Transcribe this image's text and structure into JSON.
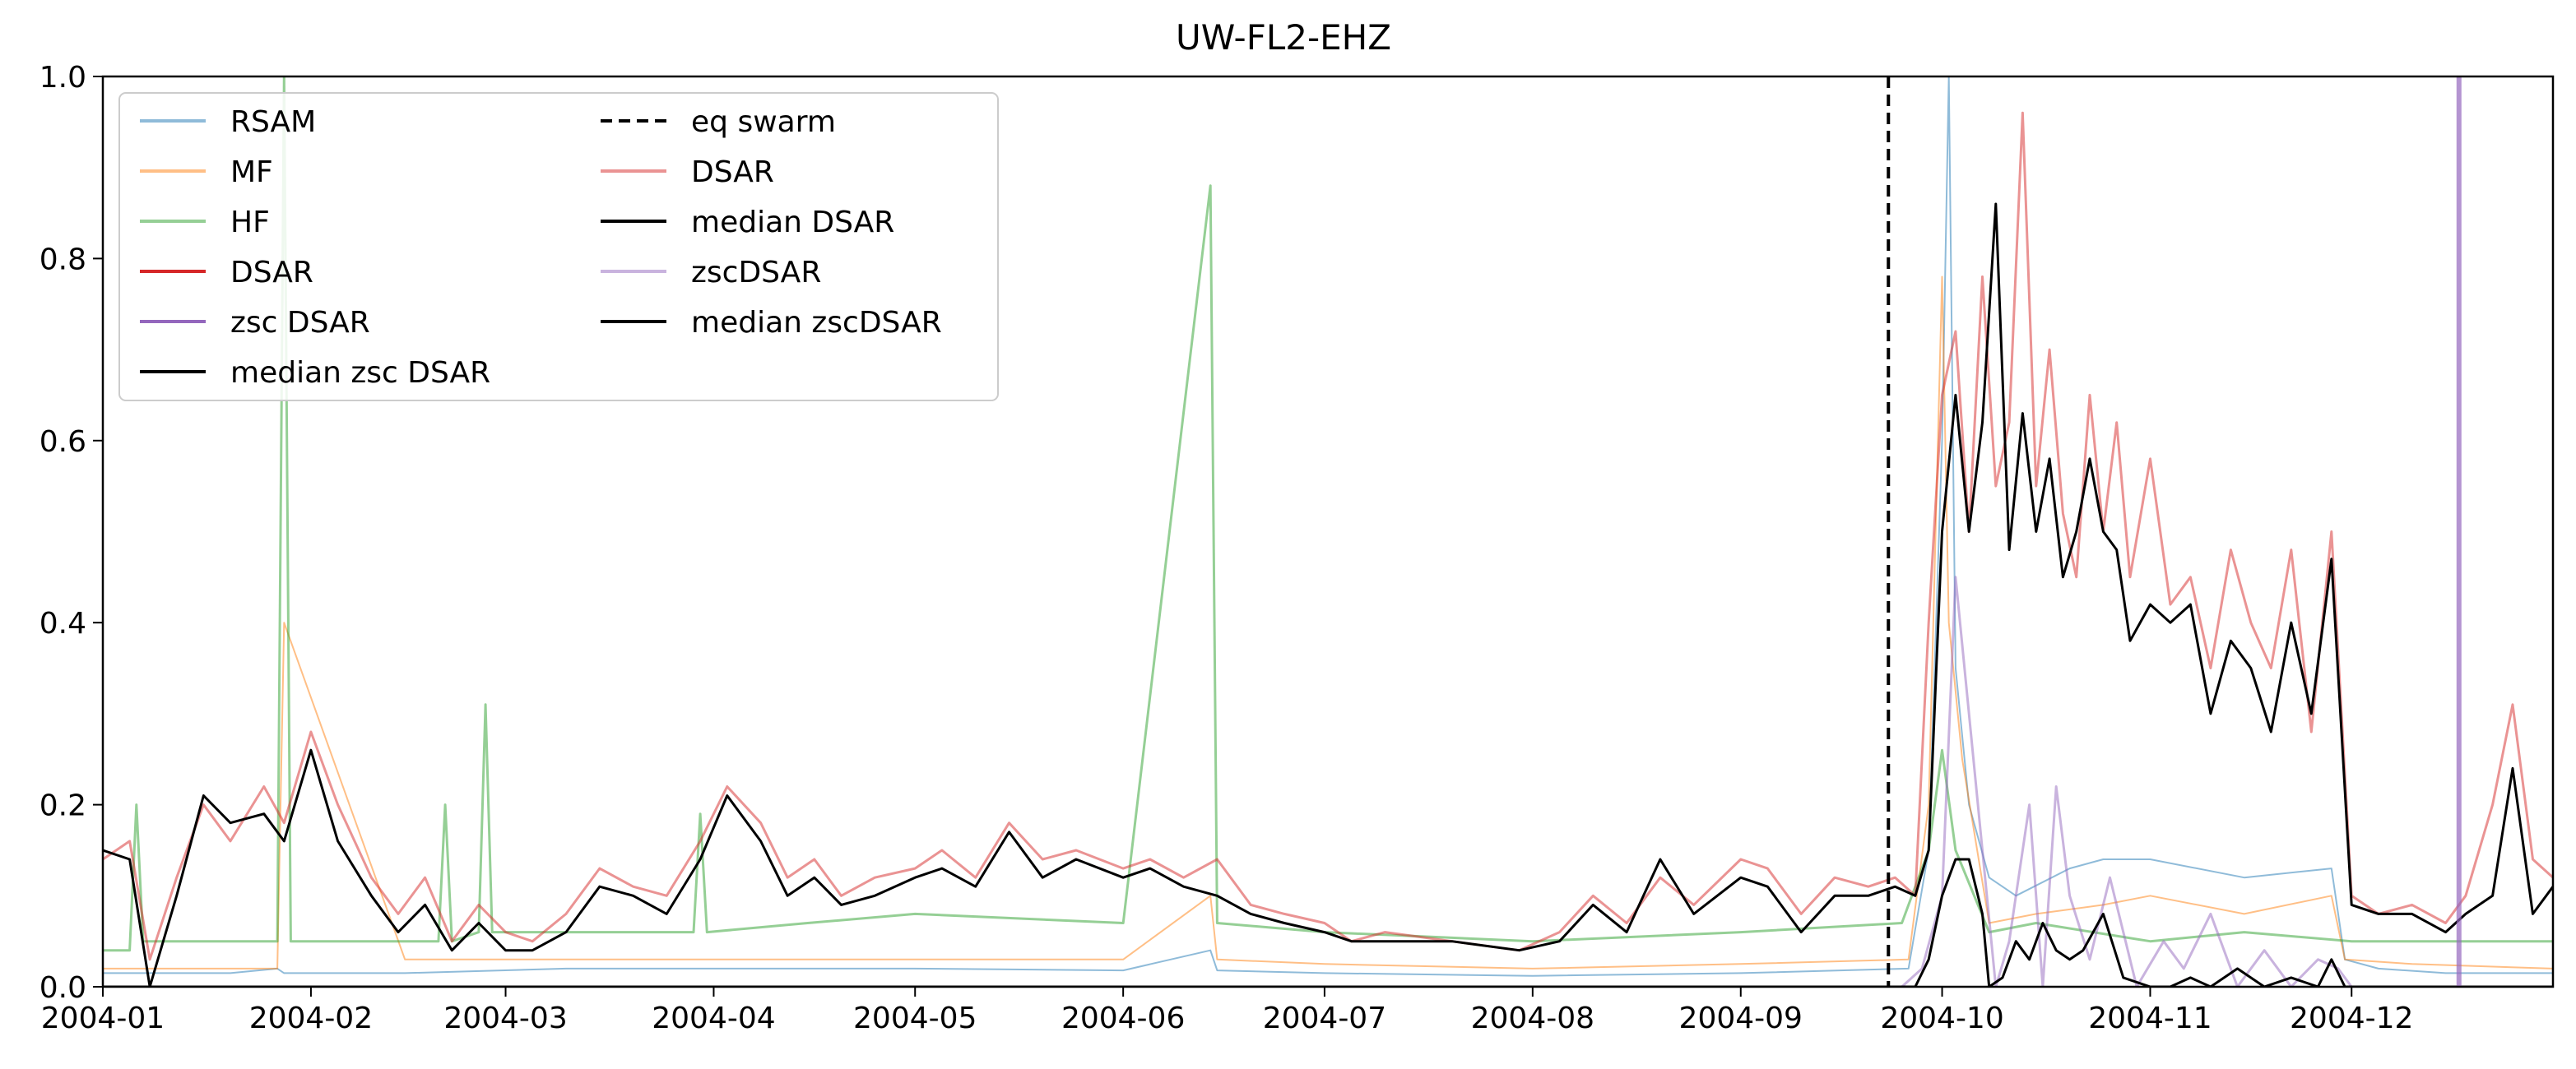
{
  "chart_data": {
    "type": "line",
    "title": "UW-FL2-EHZ",
    "xlabel": "",
    "ylabel": "",
    "xlim": [
      "2004-01-01",
      "2004-12-31"
    ],
    "ylim": [
      0,
      1.0
    ],
    "grid": false,
    "legend_position": "top-left",
    "x_ticks": [
      "2004-01",
      "2004-02",
      "2004-03",
      "2004-04",
      "2004-05",
      "2004-06",
      "2004-07",
      "2004-08",
      "2004-09",
      "2004-10",
      "2004-11",
      "2004-12"
    ],
    "y_ticks": [
      "0.0",
      "0.2",
      "0.4",
      "0.6",
      "0.8",
      "1.0"
    ],
    "legend": [
      {
        "label": "RSAM",
        "color": "#1f77b4",
        "alpha": 0.5,
        "dash": "solid"
      },
      {
        "label": "MF",
        "color": "#ff7f0e",
        "alpha": 0.5,
        "dash": "solid"
      },
      {
        "label": "HF",
        "color": "#2ca02c",
        "alpha": 0.5,
        "dash": "solid"
      },
      {
        "label": "DSAR",
        "color": "#d62728",
        "alpha": 1.0,
        "dash": "solid"
      },
      {
        "label": "zsc DSAR",
        "color": "#9467bd",
        "alpha": 1.0,
        "dash": "solid"
      },
      {
        "label": "median zsc DSAR",
        "color": "#000000",
        "alpha": 1.0,
        "dash": "solid"
      },
      {
        "label": "eq swarm",
        "color": "#000000",
        "alpha": 1.0,
        "dash": "dashed"
      },
      {
        "label": "DSAR",
        "color": "#d62728",
        "alpha": 0.5,
        "dash": "solid"
      },
      {
        "label": "median DSAR",
        "color": "#000000",
        "alpha": 1.0,
        "dash": "solid"
      },
      {
        "label": "zscDSAR",
        "color": "#9467bd",
        "alpha": 0.5,
        "dash": "solid"
      },
      {
        "label": "median zscDSAR",
        "color": "#000000",
        "alpha": 1.0,
        "dash": "solid"
      }
    ],
    "vlines": [
      {
        "x": "2004-09-23",
        "color": "#000000",
        "dash": "dashed"
      },
      {
        "x": "2004-12-17",
        "color": "#9467bd",
        "dash": "solid",
        "alpha": 0.7
      }
    ],
    "series": [
      {
        "name": "RSAM",
        "color": "#1f77b4",
        "alpha": 0.5,
        "width": 2,
        "x": [
          "2004-01-01",
          "2004-01-20",
          "2004-01-27",
          "2004-01-28",
          "2004-02-15",
          "2004-03-10",
          "2004-04-01",
          "2004-05-01",
          "2004-06-01",
          "2004-06-14",
          "2004-06-15",
          "2004-07-01",
          "2004-08-01",
          "2004-09-01",
          "2004-09-26",
          "2004-09-29",
          "2004-10-01",
          "2004-10-02",
          "2004-10-03",
          "2004-10-05",
          "2004-10-08",
          "2004-10-12",
          "2004-10-20",
          "2004-10-25",
          "2004-11-01",
          "2004-11-15",
          "2004-11-28",
          "2004-11-30",
          "2004-12-05",
          "2004-12-15",
          "2004-12-31"
        ],
        "y": [
          0.015,
          0.015,
          0.02,
          0.015,
          0.015,
          0.02,
          0.02,
          0.02,
          0.018,
          0.04,
          0.018,
          0.015,
          0.012,
          0.015,
          0.02,
          0.15,
          0.6,
          1.0,
          0.35,
          0.2,
          0.12,
          0.1,
          0.13,
          0.14,
          0.14,
          0.12,
          0.13,
          0.03,
          0.02,
          0.015,
          0.015
        ]
      },
      {
        "name": "MF",
        "color": "#ff7f0e",
        "alpha": 0.5,
        "width": 2,
        "x": [
          "2004-01-01",
          "2004-01-27",
          "2004-01-28",
          "2004-02-15",
          "2004-03-10",
          "2004-04-01",
          "2004-05-01",
          "2004-06-01",
          "2004-06-14",
          "2004-06-15",
          "2004-07-01",
          "2004-08-01",
          "2004-09-01",
          "2004-09-26",
          "2004-09-29",
          "2004-10-01",
          "2004-10-02",
          "2004-10-04",
          "2004-10-08",
          "2004-10-15",
          "2004-10-25",
          "2004-11-01",
          "2004-11-15",
          "2004-11-28",
          "2004-11-30",
          "2004-12-10",
          "2004-12-31"
        ],
        "y": [
          0.02,
          0.02,
          0.4,
          0.03,
          0.03,
          0.03,
          0.03,
          0.03,
          0.1,
          0.03,
          0.025,
          0.02,
          0.025,
          0.03,
          0.2,
          0.78,
          0.4,
          0.25,
          0.07,
          0.08,
          0.09,
          0.1,
          0.08,
          0.1,
          0.03,
          0.025,
          0.02
        ]
      },
      {
        "name": "HF",
        "color": "#2ca02c",
        "alpha": 0.5,
        "width": 3,
        "x": [
          "2004-01-01",
          "2004-01-05",
          "2004-01-06",
          "2004-01-07",
          "2004-01-27",
          "2004-01-28",
          "2004-01-29",
          "2004-02-20",
          "2004-02-21",
          "2004-02-22",
          "2004-02-26",
          "2004-02-27",
          "2004-02-28",
          "2004-03-10",
          "2004-03-29",
          "2004-03-30",
          "2004-03-31",
          "2004-04-15",
          "2004-05-01",
          "2004-06-01",
          "2004-06-14",
          "2004-06-15",
          "2004-07-01",
          "2004-08-01",
          "2004-09-01",
          "2004-09-25",
          "2004-09-29",
          "2004-10-01",
          "2004-10-03",
          "2004-10-08",
          "2004-10-15",
          "2004-11-01",
          "2004-11-15",
          "2004-12-01",
          "2004-12-31"
        ],
        "y": [
          0.04,
          0.04,
          0.2,
          0.05,
          0.05,
          1.0,
          0.05,
          0.05,
          0.2,
          0.05,
          0.06,
          0.31,
          0.06,
          0.06,
          0.06,
          0.19,
          0.06,
          0.07,
          0.08,
          0.07,
          0.88,
          0.07,
          0.06,
          0.05,
          0.06,
          0.07,
          0.15,
          0.26,
          0.15,
          0.06,
          0.07,
          0.05,
          0.06,
          0.05,
          0.05
        ]
      },
      {
        "name": "DSAR",
        "color": "#d62728",
        "alpha": 0.5,
        "width": 3,
        "x": [
          "2004-01-01",
          "2004-01-05",
          "2004-01-08",
          "2004-01-12",
          "2004-01-16",
          "2004-01-20",
          "2004-01-25",
          "2004-01-28",
          "2004-02-01",
          "2004-02-05",
          "2004-02-10",
          "2004-02-14",
          "2004-02-18",
          "2004-02-22",
          "2004-02-26",
          "2004-03-01",
          "2004-03-05",
          "2004-03-10",
          "2004-03-15",
          "2004-03-20",
          "2004-03-25",
          "2004-03-30",
          "2004-04-03",
          "2004-04-08",
          "2004-04-12",
          "2004-04-16",
          "2004-04-20",
          "2004-04-25",
          "2004-05-01",
          "2004-05-05",
          "2004-05-10",
          "2004-05-15",
          "2004-05-20",
          "2004-05-25",
          "2004-06-01",
          "2004-06-05",
          "2004-06-10",
          "2004-06-15",
          "2004-06-20",
          "2004-06-25",
          "2004-07-01",
          "2004-07-05",
          "2004-07-10",
          "2004-07-20",
          "2004-07-30",
          "2004-08-05",
          "2004-08-10",
          "2004-08-15",
          "2004-08-20",
          "2004-08-25",
          "2004-09-01",
          "2004-09-05",
          "2004-09-10",
          "2004-09-15",
          "2004-09-20",
          "2004-09-24",
          "2004-09-27",
          "2004-09-29",
          "2004-10-01",
          "2004-10-03",
          "2004-10-05",
          "2004-10-07",
          "2004-10-09",
          "2004-10-11",
          "2004-10-13",
          "2004-10-15",
          "2004-10-17",
          "2004-10-19",
          "2004-10-21",
          "2004-10-23",
          "2004-10-25",
          "2004-10-27",
          "2004-10-29",
          "2004-11-01",
          "2004-11-04",
          "2004-11-07",
          "2004-11-10",
          "2004-11-13",
          "2004-11-16",
          "2004-11-19",
          "2004-11-22",
          "2004-11-25",
          "2004-11-28",
          "2004-12-01",
          "2004-12-05",
          "2004-12-10",
          "2004-12-15",
          "2004-12-18",
          "2004-12-22",
          "2004-12-25",
          "2004-12-28",
          "2004-12-31"
        ],
        "y": [
          0.14,
          0.16,
          0.03,
          0.12,
          0.2,
          0.16,
          0.22,
          0.18,
          0.28,
          0.2,
          0.12,
          0.08,
          0.12,
          0.05,
          0.09,
          0.06,
          0.05,
          0.08,
          0.13,
          0.11,
          0.1,
          0.16,
          0.22,
          0.18,
          0.12,
          0.14,
          0.1,
          0.12,
          0.13,
          0.15,
          0.12,
          0.18,
          0.14,
          0.15,
          0.13,
          0.14,
          0.12,
          0.14,
          0.09,
          0.08,
          0.07,
          0.05,
          0.06,
          0.05,
          0.04,
          0.06,
          0.1,
          0.07,
          0.12,
          0.09,
          0.14,
          0.13,
          0.08,
          0.12,
          0.11,
          0.12,
          0.1,
          0.4,
          0.65,
          0.72,
          0.5,
          0.78,
          0.55,
          0.62,
          0.96,
          0.55,
          0.7,
          0.52,
          0.45,
          0.65,
          0.5,
          0.62,
          0.45,
          0.58,
          0.42,
          0.45,
          0.35,
          0.48,
          0.4,
          0.35,
          0.48,
          0.28,
          0.5,
          0.1,
          0.08,
          0.09,
          0.07,
          0.1,
          0.2,
          0.31,
          0.14,
          0.12
        ]
      },
      {
        "name": "median DSAR",
        "color": "#000000",
        "alpha": 1.0,
        "width": 3,
        "x": [
          "2004-01-01",
          "2004-01-05",
          "2004-01-08",
          "2004-01-12",
          "2004-01-16",
          "2004-01-20",
          "2004-01-25",
          "2004-01-28",
          "2004-02-01",
          "2004-02-05",
          "2004-02-10",
          "2004-02-14",
          "2004-02-18",
          "2004-02-22",
          "2004-02-26",
          "2004-03-01",
          "2004-03-05",
          "2004-03-10",
          "2004-03-15",
          "2004-03-20",
          "2004-03-25",
          "2004-03-30",
          "2004-04-03",
          "2004-04-08",
          "2004-04-12",
          "2004-04-16",
          "2004-04-20",
          "2004-04-25",
          "2004-05-01",
          "2004-05-05",
          "2004-05-10",
          "2004-05-15",
          "2004-05-20",
          "2004-05-25",
          "2004-06-01",
          "2004-06-05",
          "2004-06-10",
          "2004-06-15",
          "2004-06-20",
          "2004-06-25",
          "2004-07-01",
          "2004-07-05",
          "2004-07-10",
          "2004-07-20",
          "2004-07-30",
          "2004-08-05",
          "2004-08-10",
          "2004-08-15",
          "2004-08-20",
          "2004-08-25",
          "2004-09-01",
          "2004-09-05",
          "2004-09-10",
          "2004-09-15",
          "2004-09-20",
          "2004-09-24",
          "2004-09-27",
          "2004-09-29",
          "2004-10-01",
          "2004-10-03",
          "2004-10-05",
          "2004-10-07",
          "2004-10-09",
          "2004-10-11",
          "2004-10-13",
          "2004-10-15",
          "2004-10-17",
          "2004-10-19",
          "2004-10-21",
          "2004-10-23",
          "2004-10-25",
          "2004-10-27",
          "2004-10-29",
          "2004-11-01",
          "2004-11-04",
          "2004-11-07",
          "2004-11-10",
          "2004-11-13",
          "2004-11-16",
          "2004-11-19",
          "2004-11-22",
          "2004-11-25",
          "2004-11-28",
          "2004-12-01",
          "2004-12-05",
          "2004-12-10",
          "2004-12-15",
          "2004-12-18",
          "2004-12-22",
          "2004-12-25",
          "2004-12-28",
          "2004-12-31"
        ],
        "y": [
          0.15,
          0.14,
          0.0,
          0.1,
          0.21,
          0.18,
          0.19,
          0.16,
          0.26,
          0.16,
          0.1,
          0.06,
          0.09,
          0.04,
          0.07,
          0.04,
          0.04,
          0.06,
          0.11,
          0.1,
          0.08,
          0.14,
          0.21,
          0.16,
          0.1,
          0.12,
          0.09,
          0.1,
          0.12,
          0.13,
          0.11,
          0.17,
          0.12,
          0.14,
          0.12,
          0.13,
          0.11,
          0.1,
          0.08,
          0.07,
          0.06,
          0.05,
          0.05,
          0.05,
          0.04,
          0.05,
          0.09,
          0.06,
          0.14,
          0.08,
          0.12,
          0.11,
          0.06,
          0.1,
          0.1,
          0.11,
          0.1,
          0.15,
          0.5,
          0.65,
          0.5,
          0.62,
          0.86,
          0.48,
          0.63,
          0.5,
          0.58,
          0.45,
          0.5,
          0.58,
          0.5,
          0.48,
          0.38,
          0.42,
          0.4,
          0.42,
          0.3,
          0.38,
          0.35,
          0.28,
          0.4,
          0.3,
          0.47,
          0.09,
          0.08,
          0.08,
          0.06,
          0.08,
          0.1,
          0.24,
          0.08,
          0.11
        ]
      },
      {
        "name": "zscDSAR",
        "color": "#9467bd",
        "alpha": 0.5,
        "width": 3,
        "x": [
          "2004-01-01",
          "2004-09-25",
          "2004-09-28",
          "2004-10-01",
          "2004-10-03",
          "2004-10-05",
          "2004-10-07",
          "2004-10-09",
          "2004-10-11",
          "2004-10-14",
          "2004-10-16",
          "2004-10-18",
          "2004-10-20",
          "2004-10-23",
          "2004-10-26",
          "2004-10-30",
          "2004-11-03",
          "2004-11-06",
          "2004-11-10",
          "2004-11-14",
          "2004-11-18",
          "2004-11-22",
          "2004-11-26",
          "2004-11-29",
          "2004-12-01",
          "2004-12-31"
        ],
        "y": [
          0.0,
          0.0,
          0.02,
          0.1,
          0.45,
          0.3,
          0.15,
          0.0,
          0.05,
          0.2,
          0.0,
          0.22,
          0.1,
          0.03,
          0.12,
          0.0,
          0.05,
          0.02,
          0.08,
          0.0,
          0.04,
          0.0,
          0.03,
          0.02,
          0.0,
          0.0
        ]
      },
      {
        "name": "median zscDSAR",
        "color": "#000000",
        "alpha": 1.0,
        "width": 3,
        "x": [
          "2004-01-01",
          "2004-09-27",
          "2004-09-29",
          "2004-10-01",
          "2004-10-03",
          "2004-10-05",
          "2004-10-07",
          "2004-10-08",
          "2004-10-10",
          "2004-10-12",
          "2004-10-14",
          "2004-10-16",
          "2004-10-18",
          "2004-10-20",
          "2004-10-22",
          "2004-10-25",
          "2004-10-28",
          "2004-11-01",
          "2004-11-04",
          "2004-11-07",
          "2004-11-10",
          "2004-11-14",
          "2004-11-18",
          "2004-11-22",
          "2004-11-26",
          "2004-11-28",
          "2004-11-30",
          "2004-12-31"
        ],
        "y": [
          0.0,
          0.0,
          0.03,
          0.1,
          0.14,
          0.14,
          0.08,
          0.0,
          0.01,
          0.05,
          0.03,
          0.07,
          0.04,
          0.03,
          0.04,
          0.08,
          0.01,
          0.0,
          0.0,
          0.01,
          0.0,
          0.02,
          0.0,
          0.01,
          0.0,
          0.03,
          0.0,
          0.0
        ]
      }
    ]
  }
}
